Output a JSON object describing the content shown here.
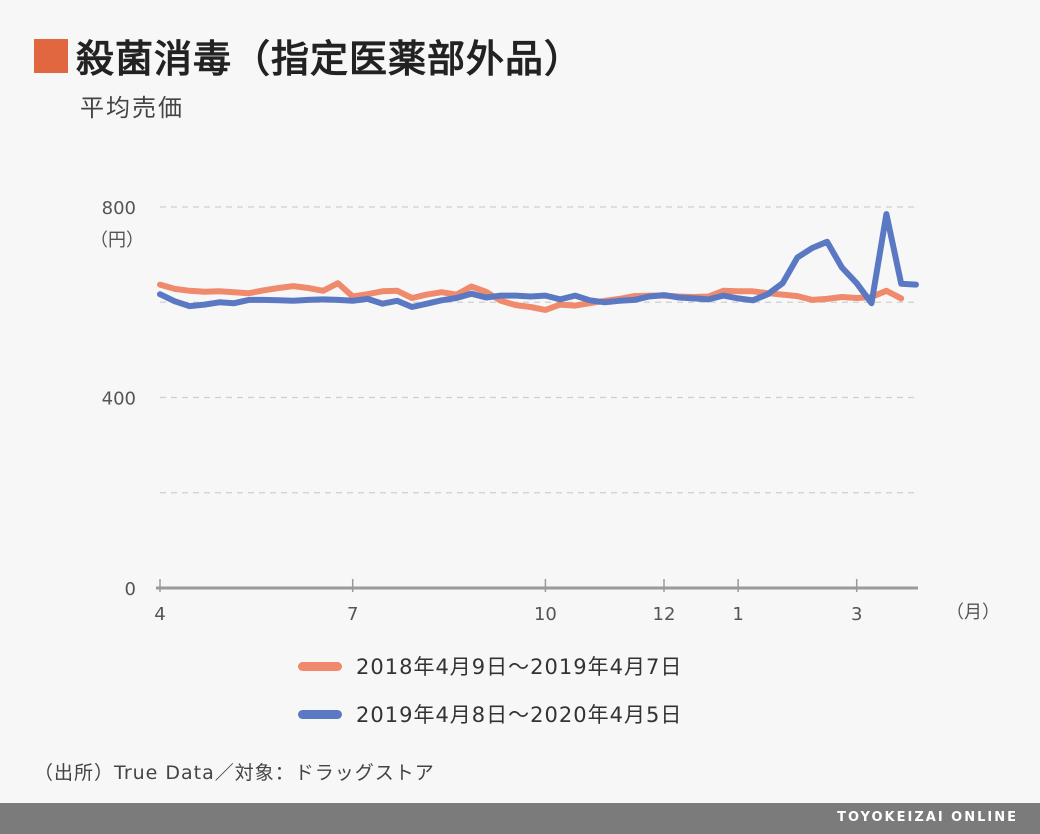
{
  "header": {
    "title": "殺菌消毒（指定医薬部外品）",
    "subtitle": "平均売価",
    "accent_color": "#e0673f"
  },
  "chart_data": {
    "type": "line",
    "ylabel": "（円）",
    "xlabel": "（月）",
    "ylim": [
      0,
      800
    ],
    "y_ticks": [
      {
        "value": 0,
        "label": "0"
      },
      {
        "value": 400,
        "label": "400"
      },
      {
        "value": 800,
        "label": "800"
      }
    ],
    "gridlines": [
      200,
      400,
      600,
      800
    ],
    "x_ticks": [
      {
        "week": 0,
        "label": "4"
      },
      {
        "week": 13,
        "label": "7"
      },
      {
        "week": 26,
        "label": "10"
      },
      {
        "week": 34,
        "label": "12"
      },
      {
        "week": 39,
        "label": "1"
      },
      {
        "week": 47,
        "label": "3"
      }
    ],
    "x_week_max": 51,
    "series": [
      {
        "name": "2018年4月9日～2019年4月7日",
        "color": "#f08a6c",
        "values": [
          637,
          628,
          624,
          622,
          623,
          621,
          619,
          625,
          630,
          634,
          630,
          624,
          640,
          612,
          617,
          623,
          624,
          609,
          616,
          621,
          616,
          633,
          622,
          603,
          594,
          590,
          584,
          595,
          593,
          598,
          603,
          607,
          613,
          614,
          614,
          612,
          611,
          612,
          624,
          623,
          623,
          619,
          616,
          613,
          605,
          607,
          611,
          609,
          611,
          624,
          608
        ]
      },
      {
        "name": "2019年4月8日～2020年4月5日",
        "color": "#5b79c2",
        "values": [
          617,
          602,
          592,
          595,
          600,
          598,
          605,
          605,
          604,
          603,
          605,
          606,
          605,
          603,
          607,
          597,
          603,
          590,
          597,
          604,
          609,
          618,
          610,
          614,
          614,
          612,
          614,
          606,
          614,
          604,
          600,
          603,
          605,
          612,
          615,
          610,
          608,
          606,
          614,
          608,
          604,
          617,
          640,
          694,
          714,
          727,
          673,
          640,
          598,
          785,
          639,
          637
        ]
      }
    ]
  },
  "source": "（出所）True Data／対象：ドラッグストア",
  "footer": "TOYOKEIZAI ONLINE"
}
